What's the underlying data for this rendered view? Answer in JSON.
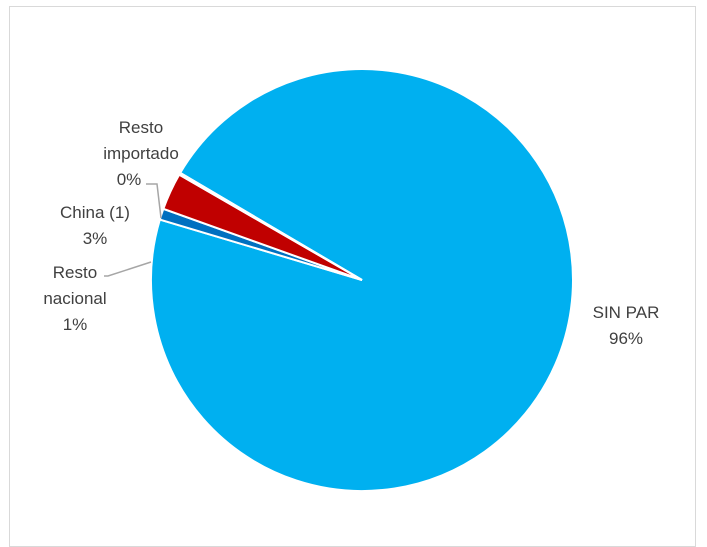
{
  "chart_data": {
    "type": "pie",
    "title": "",
    "slices": [
      {
        "label": "SIN PAR",
        "percent_label": "96%",
        "value": 96.15,
        "color": "#00b0f0"
      },
      {
        "label": "Resto nacional",
        "percent_label": "1%",
        "value": 0.85,
        "color": "#0070c0"
      },
      {
        "label": "China (1)",
        "percent_label": "3%",
        "value": 2.85,
        "color": "#c00000"
      },
      {
        "label": "Resto importado",
        "percent_label": "0%",
        "value": 0.15,
        "color": "#ffc000"
      }
    ],
    "legend": "none",
    "data_labels": "outside with leader lines"
  }
}
